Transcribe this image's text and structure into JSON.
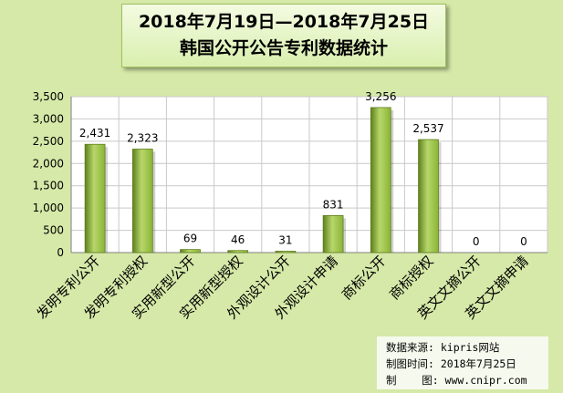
{
  "title": {
    "line1": "2018年7月19日—2018年7月25日",
    "line2": "韩国公开公告专利数据统计"
  },
  "colors": {
    "background": "#d6e9a8",
    "bar": "#8ab436",
    "bar_light": "#b7d76a",
    "bar_dark": "#5f7f1e",
    "grid": "#c9c9c9"
  },
  "chart_data": {
    "type": "bar",
    "categories": [
      "发明专利公开",
      "发明专利授权",
      "实用新型公开",
      "实用新型授权",
      "外观设计公开",
      "外观设计申请",
      "商标公开",
      "商标授权",
      "英文文摘公开",
      "英文文摘申请"
    ],
    "values": [
      2431,
      2323,
      69,
      46,
      31,
      831,
      3256,
      2537,
      0,
      0
    ],
    "data_labels": [
      "2,431",
      "2,323",
      "69",
      "46",
      "31",
      "831",
      "3,256",
      "2,537",
      "0",
      "0"
    ],
    "ylim": [
      0,
      3500
    ],
    "yticks": [
      0,
      500,
      1000,
      1500,
      2000,
      2500,
      3000,
      3500
    ],
    "ytick_labels": [
      "0",
      "500",
      "1,000",
      "1,500",
      "2,000",
      "2,500",
      "3,000",
      "3,500"
    ],
    "grid": true,
    "legend": "none"
  },
  "source": {
    "line1": "数据来源: kipris网站",
    "line2": "制图时间: 2018年7月25日",
    "line3": "制    图: www.cnipr.com"
  }
}
